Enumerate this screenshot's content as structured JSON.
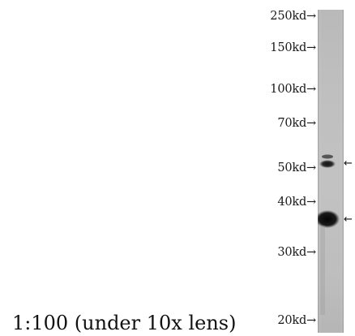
{
  "markers": [
    "250kd→",
    "150kd→",
    "100kd→",
    "70kd→",
    "50kd→",
    "40kd→",
    "30kd→",
    "20kd→"
  ],
  "caption": "1:100 (under 10x lens)",
  "band_arrows": [
    "←",
    "←"
  ],
  "colors": {
    "lane_light": "#bcbcbc",
    "lane_dark": "#8f8f8f",
    "band": "#0c0c0c"
  }
}
